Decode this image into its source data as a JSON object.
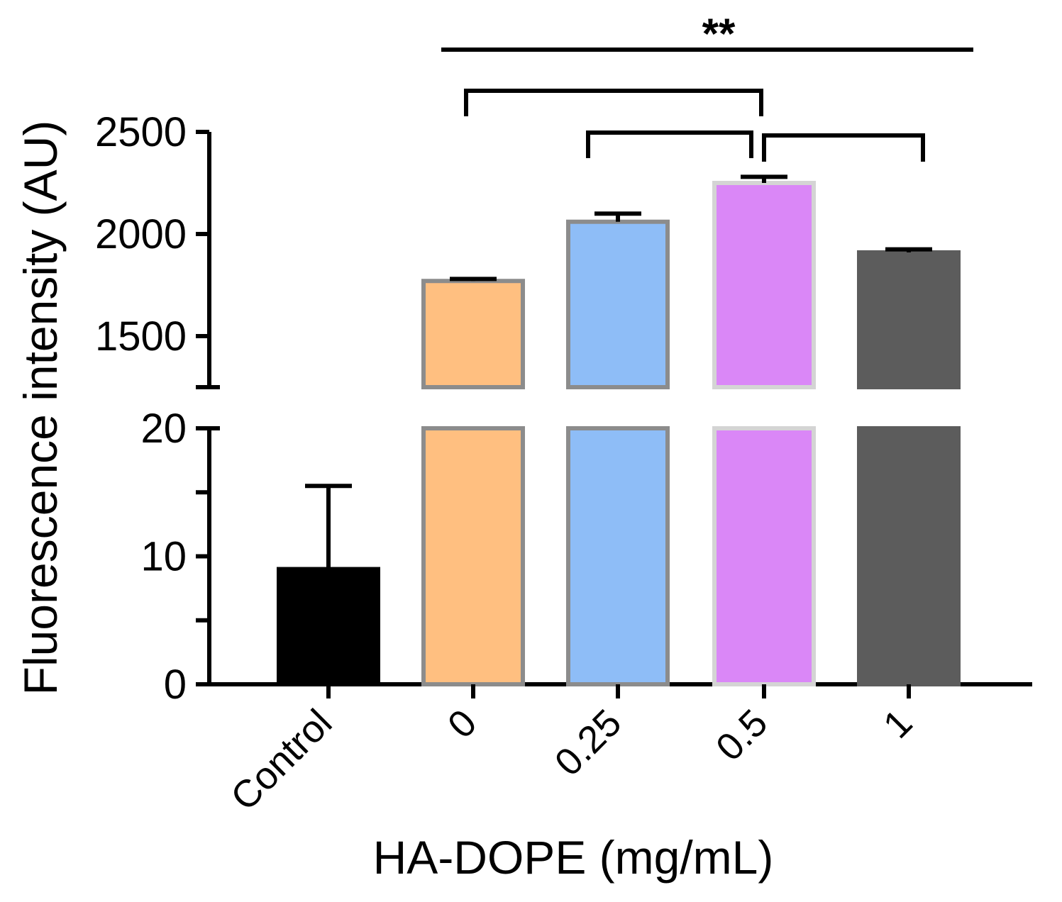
{
  "chart_data": {
    "type": "bar",
    "xlabel": "HA-DOPE (mg/mL)",
    "ylabel": "Fluorescence intensity (AU)",
    "categories": [
      "Control",
      "0",
      "0.25",
      "0.5",
      "1"
    ],
    "values": [
      9,
      1770,
      2060,
      2250,
      1910
    ],
    "errors": [
      6.5,
      10,
      40,
      30,
      15
    ],
    "colors": [
      "#000000",
      "#ffbf80",
      "#8ebdf7",
      "#da87f7",
      "#5c5c5c"
    ],
    "y_axis_broken": true,
    "ylim_lower": [
      0,
      20
    ],
    "yticks_lower": [
      0,
      10,
      20
    ],
    "ylim_upper": [
      1250,
      2500
    ],
    "yticks_upper": [
      1500,
      2000,
      2500
    ],
    "significance": {
      "label": "**",
      "comparisons": [
        [
          "0",
          "1"
        ],
        [
          "0",
          "0.5"
        ],
        [
          "0.25",
          "0.5"
        ],
        [
          "0.5",
          "1"
        ]
      ]
    }
  }
}
